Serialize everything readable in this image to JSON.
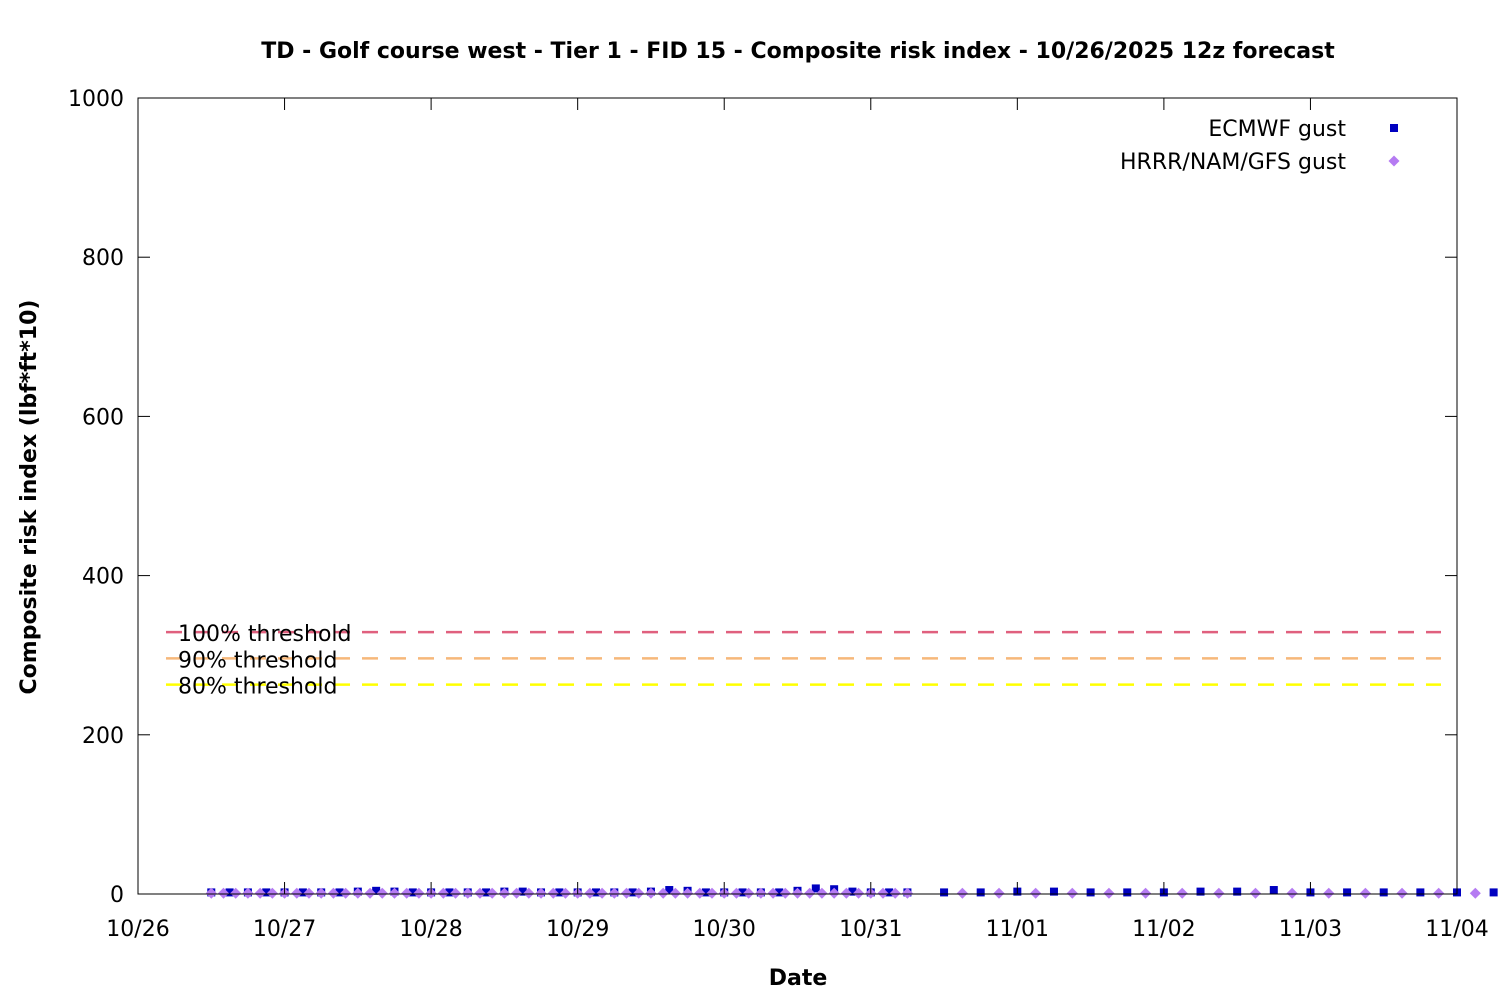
{
  "chart_data": {
    "type": "scatter",
    "title": "TD - Golf course west - Tier 1 - FID 15 - Composite risk index - 10/26/2025 12z forecast",
    "xlabel": "Date",
    "ylabel": "Composite risk index (lbf*ft*10)",
    "xlim": [
      "2025-10-26T00:00",
      "2025-11-04T00:00"
    ],
    "ylim": [
      0,
      1000
    ],
    "x_ticks": [
      "10/26",
      "10/27",
      "10/28",
      "10/29",
      "10/30",
      "10/31",
      "11/01",
      "11/02",
      "11/03",
      "11/04"
    ],
    "y_ticks": [
      0,
      200,
      400,
      600,
      800,
      1000
    ],
    "grid": false,
    "legend_position": "top-right",
    "thresholds": [
      {
        "label": "100% threshold",
        "value": 329,
        "color": "#e0607e"
      },
      {
        "label": "90% threshold",
        "value": 296,
        "color": "#f6b87a"
      },
      {
        "label": "80% threshold",
        "value": 263,
        "color": "#ffff00"
      }
    ],
    "series": [
      {
        "name": "ECMWF gust",
        "color": "#0000c0",
        "marker": "square",
        "points": [
          [
            "2025-10-26T12:00",
            2
          ],
          [
            "2025-10-26T15:00",
            2
          ],
          [
            "2025-10-26T18:00",
            2
          ],
          [
            "2025-10-26T21:00",
            2
          ],
          [
            "2025-10-27T00:00",
            2
          ],
          [
            "2025-10-27T03:00",
            2
          ],
          [
            "2025-10-27T06:00",
            2
          ],
          [
            "2025-10-27T09:00",
            2
          ],
          [
            "2025-10-27T12:00",
            3
          ],
          [
            "2025-10-27T15:00",
            4
          ],
          [
            "2025-10-27T18:00",
            3
          ],
          [
            "2025-10-27T21:00",
            2
          ],
          [
            "2025-10-28T00:00",
            2
          ],
          [
            "2025-10-28T03:00",
            2
          ],
          [
            "2025-10-28T06:00",
            2
          ],
          [
            "2025-10-28T09:00",
            2
          ],
          [
            "2025-10-28T12:00",
            3
          ],
          [
            "2025-10-28T15:00",
            3
          ],
          [
            "2025-10-28T18:00",
            2
          ],
          [
            "2025-10-28T21:00",
            2
          ],
          [
            "2025-10-29T00:00",
            2
          ],
          [
            "2025-10-29T03:00",
            2
          ],
          [
            "2025-10-29T06:00",
            2
          ],
          [
            "2025-10-29T09:00",
            2
          ],
          [
            "2025-10-29T12:00",
            3
          ],
          [
            "2025-10-29T15:00",
            5
          ],
          [
            "2025-10-29T18:00",
            4
          ],
          [
            "2025-10-29T21:00",
            2
          ],
          [
            "2025-10-30T00:00",
            2
          ],
          [
            "2025-10-30T03:00",
            2
          ],
          [
            "2025-10-30T06:00",
            2
          ],
          [
            "2025-10-30T09:00",
            2
          ],
          [
            "2025-10-30T12:00",
            4
          ],
          [
            "2025-10-30T15:00",
            7
          ],
          [
            "2025-10-30T18:00",
            6
          ],
          [
            "2025-10-30T21:00",
            3
          ],
          [
            "2025-10-31T00:00",
            2
          ],
          [
            "2025-10-31T03:00",
            2
          ],
          [
            "2025-10-31T06:00",
            2
          ],
          [
            "2025-10-31T12:00",
            2
          ],
          [
            "2025-10-31T18:00",
            2
          ],
          [
            "2025-11-01T00:00",
            3
          ],
          [
            "2025-11-01T06:00",
            3
          ],
          [
            "2025-11-01T12:00",
            2
          ],
          [
            "2025-11-01T18:00",
            2
          ],
          [
            "2025-11-02T00:00",
            2
          ],
          [
            "2025-11-02T06:00",
            3
          ],
          [
            "2025-11-02T12:00",
            3
          ],
          [
            "2025-11-02T18:00",
            5
          ],
          [
            "2025-11-03T00:00",
            2
          ],
          [
            "2025-11-03T06:00",
            2
          ],
          [
            "2025-11-03T12:00",
            2
          ],
          [
            "2025-11-03T18:00",
            2
          ],
          [
            "2025-11-04T00:00",
            2
          ],
          [
            "2025-11-04T06:00",
            2
          ]
        ]
      },
      {
        "name": "HRRR/NAM/GFS gust",
        "color": "#b57bf2",
        "marker": "diamond",
        "points": [
          [
            "2025-10-26T12:00",
            1
          ],
          [
            "2025-10-26T14:00",
            1
          ],
          [
            "2025-10-26T16:00",
            1
          ],
          [
            "2025-10-26T18:00",
            1
          ],
          [
            "2025-10-26T20:00",
            1
          ],
          [
            "2025-10-26T22:00",
            1
          ],
          [
            "2025-10-27T00:00",
            1
          ],
          [
            "2025-10-27T02:00",
            1
          ],
          [
            "2025-10-27T04:00",
            1
          ],
          [
            "2025-10-27T06:00",
            1
          ],
          [
            "2025-10-27T08:00",
            1
          ],
          [
            "2025-10-27T10:00",
            1
          ],
          [
            "2025-10-27T12:00",
            1
          ],
          [
            "2025-10-27T14:00",
            1
          ],
          [
            "2025-10-27T16:00",
            1
          ],
          [
            "2025-10-27T18:00",
            1
          ],
          [
            "2025-10-27T20:00",
            1
          ],
          [
            "2025-10-27T22:00",
            1
          ],
          [
            "2025-10-28T00:00",
            1
          ],
          [
            "2025-10-28T02:00",
            1
          ],
          [
            "2025-10-28T04:00",
            1
          ],
          [
            "2025-10-28T06:00",
            1
          ],
          [
            "2025-10-28T08:00",
            1
          ],
          [
            "2025-10-28T10:00",
            1
          ],
          [
            "2025-10-28T12:00",
            1
          ],
          [
            "2025-10-28T14:00",
            1
          ],
          [
            "2025-10-28T16:00",
            1
          ],
          [
            "2025-10-28T18:00",
            1
          ],
          [
            "2025-10-28T20:00",
            1
          ],
          [
            "2025-10-28T22:00",
            1
          ],
          [
            "2025-10-29T00:00",
            1
          ],
          [
            "2025-10-29T02:00",
            1
          ],
          [
            "2025-10-29T04:00",
            1
          ],
          [
            "2025-10-29T06:00",
            1
          ],
          [
            "2025-10-29T08:00",
            1
          ],
          [
            "2025-10-29T10:00",
            1
          ],
          [
            "2025-10-29T12:00",
            1
          ],
          [
            "2025-10-29T14:00",
            1
          ],
          [
            "2025-10-29T16:00",
            1
          ],
          [
            "2025-10-29T18:00",
            1
          ],
          [
            "2025-10-29T20:00",
            1
          ],
          [
            "2025-10-29T22:00",
            1
          ],
          [
            "2025-10-30T00:00",
            1
          ],
          [
            "2025-10-30T02:00",
            1
          ],
          [
            "2025-10-30T04:00",
            1
          ],
          [
            "2025-10-30T06:00",
            1
          ],
          [
            "2025-10-30T08:00",
            1
          ],
          [
            "2025-10-30T10:00",
            1
          ],
          [
            "2025-10-30T12:00",
            1
          ],
          [
            "2025-10-30T14:00",
            1
          ],
          [
            "2025-10-30T16:00",
            1
          ],
          [
            "2025-10-30T18:00",
            1
          ],
          [
            "2025-10-30T20:00",
            1
          ],
          [
            "2025-10-30T22:00",
            1
          ],
          [
            "2025-10-31T00:00",
            1
          ],
          [
            "2025-10-31T02:00",
            1
          ],
          [
            "2025-10-31T04:00",
            1
          ],
          [
            "2025-10-31T06:00",
            1
          ],
          [
            "2025-10-31T15:00",
            1
          ],
          [
            "2025-10-31T21:00",
            1
          ],
          [
            "2025-11-01T03:00",
            1
          ],
          [
            "2025-11-01T09:00",
            1
          ],
          [
            "2025-11-01T15:00",
            1
          ],
          [
            "2025-11-01T21:00",
            1
          ],
          [
            "2025-11-02T03:00",
            1
          ],
          [
            "2025-11-02T09:00",
            1
          ],
          [
            "2025-11-02T15:00",
            1
          ],
          [
            "2025-11-02T21:00",
            1
          ],
          [
            "2025-11-03T03:00",
            1
          ],
          [
            "2025-11-03T09:00",
            1
          ],
          [
            "2025-11-03T15:00",
            1
          ],
          [
            "2025-11-03T21:00",
            1
          ],
          [
            "2025-11-04T03:00",
            1
          ]
        ]
      }
    ]
  }
}
